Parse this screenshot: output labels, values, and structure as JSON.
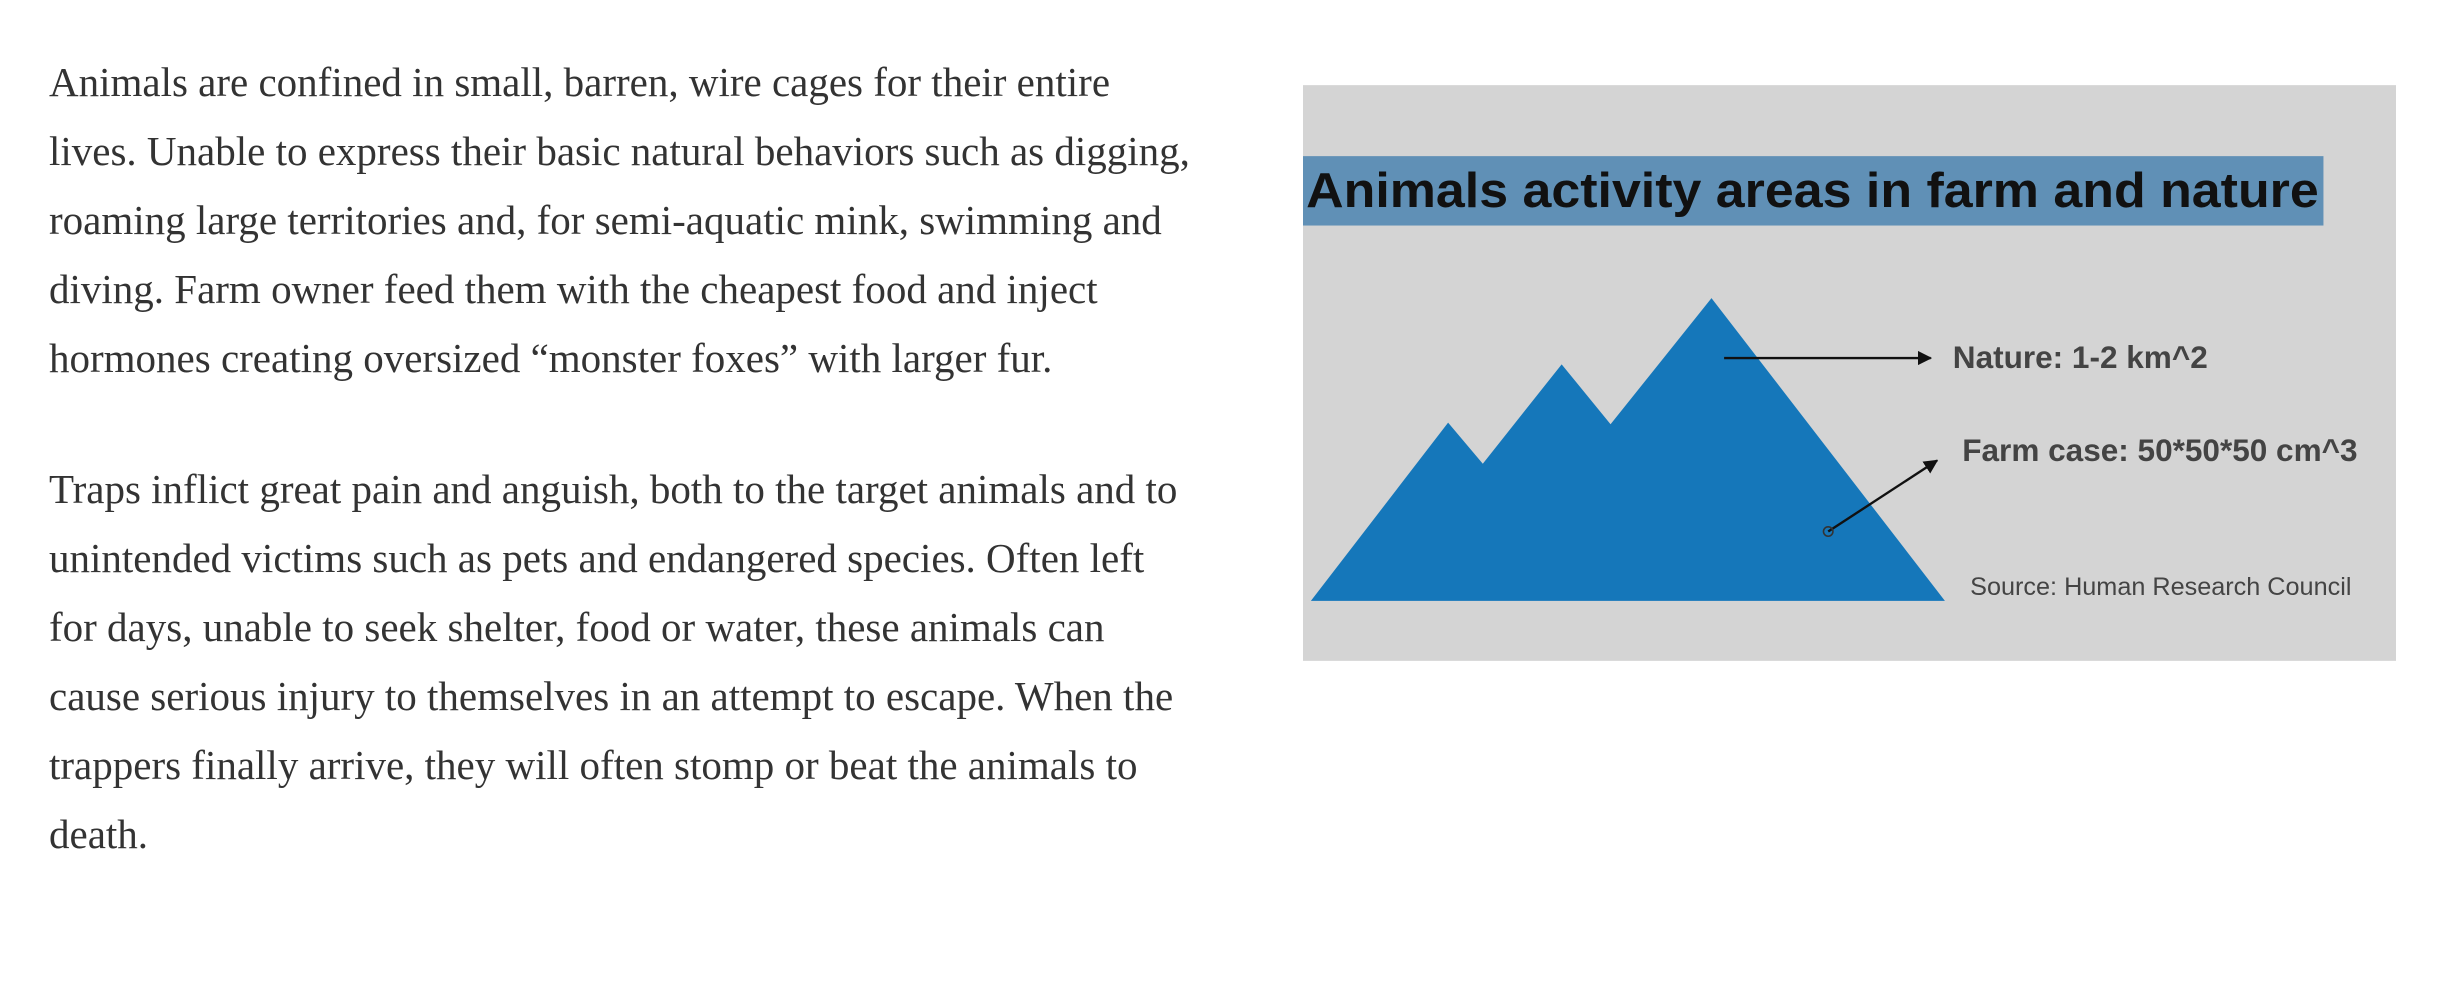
{
  "article": {
    "paragraphs": [
      "Animals are confined in small, barren, wire cages for their entire lives. Unable to express their basic natural behaviors such as digging, roaming large territories and, for semi-aquatic mink, swimming and diving. Farm owner feed them with the cheapest food and inject hormones creating oversized “monster foxes” with larger fur.",
      "Traps inflict great pain and anguish, both to the target animals and to unintended victims such as pets and endangered species. Often left for days, unable to seek shelter, food or water, these animals can cause serious injury to themselves in an attempt to escape. When the trappers finally arrive, they will often stomp or beat the animals to death."
    ]
  },
  "figure": {
    "title": "Animals activity areas in farm and nature",
    "labels": [
      "Nature: 1-2 km^2",
      "Farm case: 50*50*50 cm^3"
    ],
    "source": "Source: Human Research Council"
  }
}
